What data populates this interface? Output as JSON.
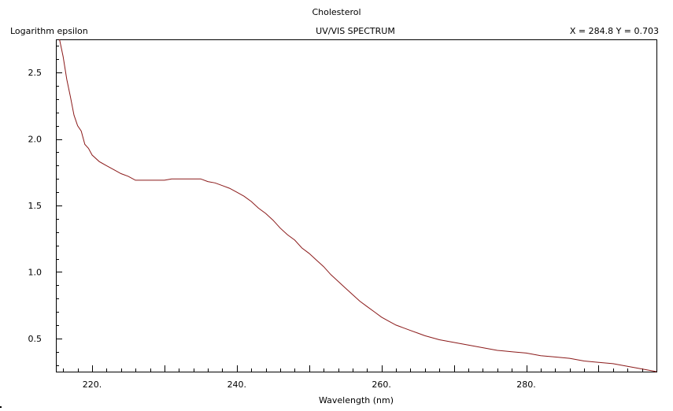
{
  "header": {
    "compound": "Cholesterol",
    "plot_title": "UV/VIS SPECTRUM",
    "y_axis_label": "Logarithm epsilon",
    "readout": "X = 284.8   Y = 0.703"
  },
  "colors": {
    "curve": "#8b1a1a",
    "axis": "#000000",
    "background": "#ffffff"
  },
  "chart_data": {
    "type": "line",
    "title": "UV/VIS SPECTRUM",
    "xlabel": "Wavelength (nm)",
    "ylabel": "Logarithm epsilon",
    "xlim": [
      215,
      298
    ],
    "ylim": [
      0.25,
      2.75
    ],
    "x_tick_labels": [
      "220.",
      "240.",
      "260.",
      "280."
    ],
    "x_tick_values": [
      220,
      240,
      260,
      280
    ],
    "y_tick_labels": [
      "0.5",
      "1.0",
      "1.5",
      "2.0",
      "2.5"
    ],
    "y_tick_values": [
      0.5,
      1.0,
      1.5,
      2.0,
      2.5
    ],
    "grid": false,
    "series": [
      {
        "x": [
          215.5,
          216,
          216.5,
          217,
          217.5,
          218,
          218.5,
          219,
          219.5,
          220,
          221,
          222,
          223,
          224,
          225,
          226,
          227,
          228,
          229,
          230,
          231,
          232,
          233,
          234,
          235,
          236,
          237,
          238,
          239,
          240,
          241,
          242,
          243,
          244,
          245,
          246,
          247,
          248,
          249,
          250,
          251,
          252,
          253,
          254,
          255,
          256,
          257,
          258,
          259,
          260,
          261,
          262,
          263,
          264,
          265,
          266,
          268,
          270,
          272,
          274,
          276,
          278,
          280,
          282,
          284,
          286,
          288,
          290,
          292,
          294,
          296,
          298
        ],
        "y": [
          2.75,
          2.62,
          2.45,
          2.32,
          2.18,
          2.1,
          2.06,
          1.96,
          1.93,
          1.88,
          1.83,
          1.8,
          1.77,
          1.74,
          1.72,
          1.69,
          1.69,
          1.69,
          1.69,
          1.69,
          1.7,
          1.7,
          1.7,
          1.7,
          1.7,
          1.68,
          1.67,
          1.65,
          1.63,
          1.6,
          1.57,
          1.53,
          1.48,
          1.44,
          1.39,
          1.33,
          1.28,
          1.24,
          1.18,
          1.14,
          1.09,
          1.04,
          0.98,
          0.93,
          0.88,
          0.83,
          0.78,
          0.74,
          0.7,
          0.66,
          0.63,
          0.6,
          0.58,
          0.56,
          0.54,
          0.52,
          0.49,
          0.47,
          0.45,
          0.43,
          0.41,
          0.4,
          0.39,
          0.37,
          0.36,
          0.35,
          0.33,
          0.32,
          0.31,
          0.29,
          0.27,
          0.25
        ]
      }
    ]
  }
}
